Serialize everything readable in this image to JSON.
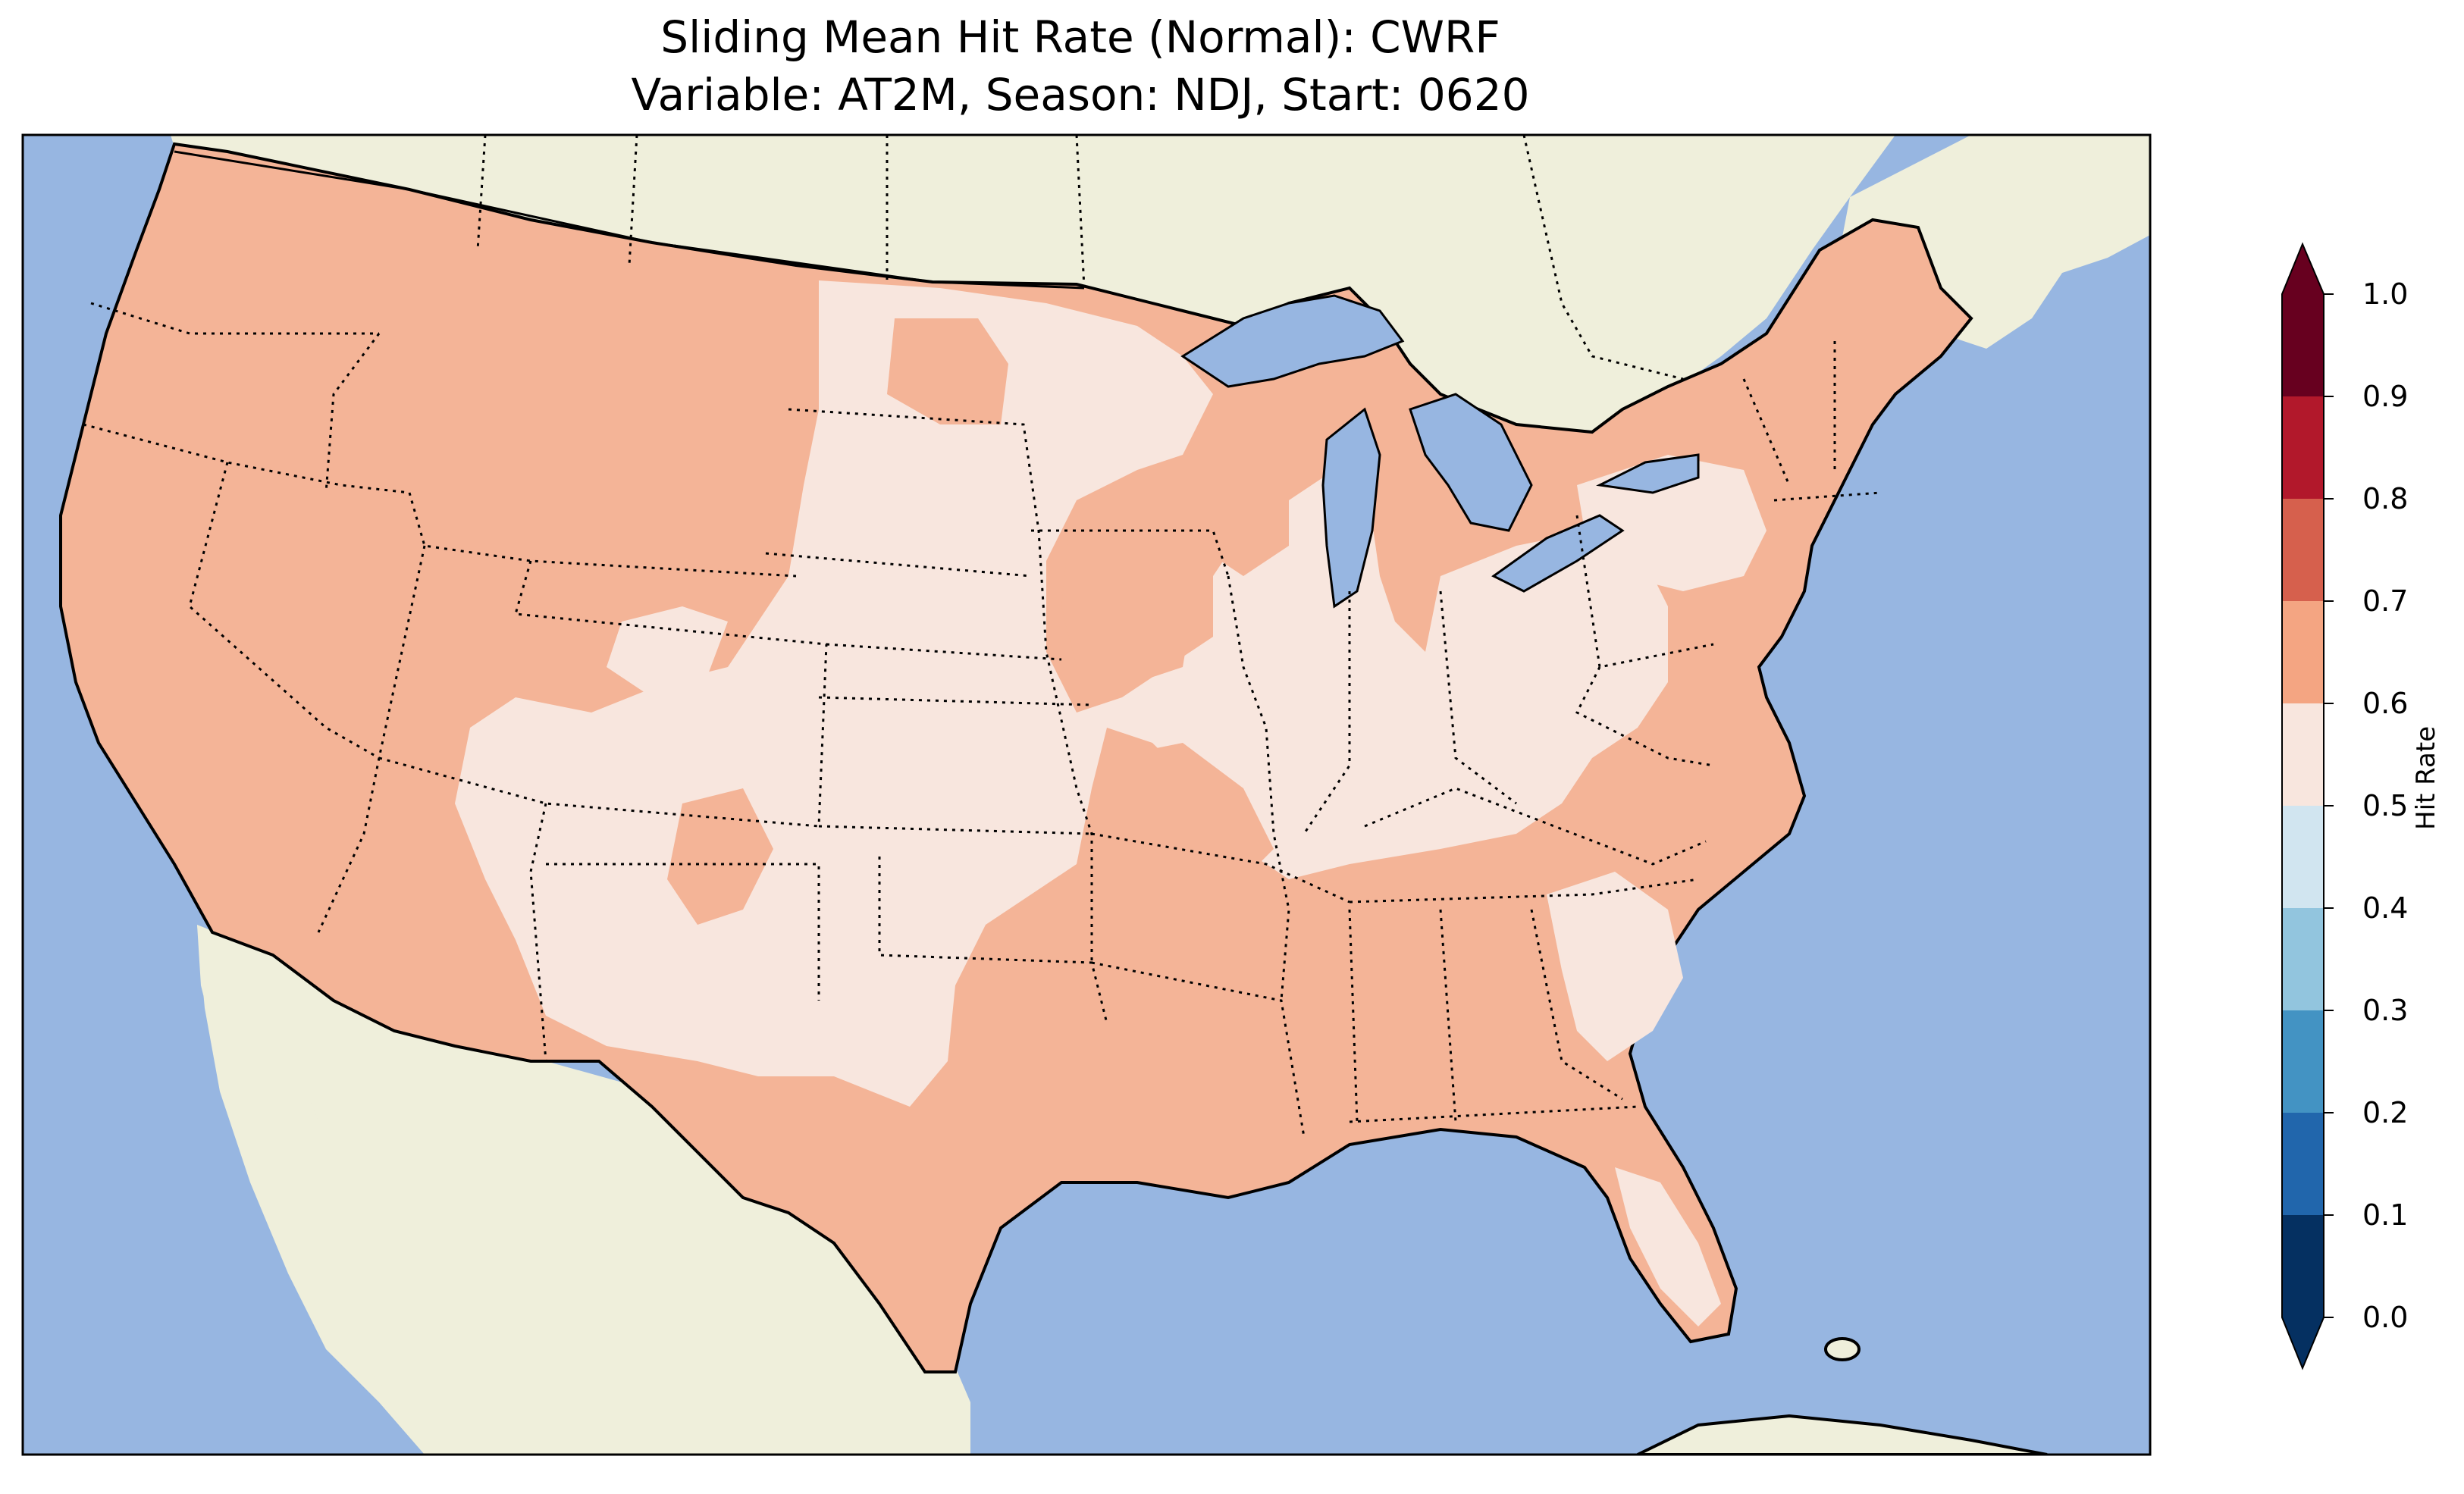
{
  "title": {
    "line1": "Sliding Mean Hit Rate (Normal): CWRF",
    "line2": "Variable: AT2M, Season: NDJ, Start: 0620"
  },
  "map": {
    "region": "Contiguous United States",
    "ocean_color": "#97b6e1",
    "land_color": "#efefdb",
    "coastline_color": "#000000",
    "state_border_style": "dotted"
  },
  "colorbar": {
    "label": "Hit Rate",
    "ticks": [
      "0.0",
      "0.1",
      "0.2",
      "0.3",
      "0.4",
      "0.5",
      "0.6",
      "0.7",
      "0.8",
      "0.9",
      "1.0"
    ],
    "bins": [
      {
        "range": [
          0.0,
          0.1
        ],
        "color": "#053061"
      },
      {
        "range": [
          0.1,
          0.2
        ],
        "color": "#2166ac"
      },
      {
        "range": [
          0.2,
          0.3
        ],
        "color": "#4393c3"
      },
      {
        "range": [
          0.3,
          0.4
        ],
        "color": "#92c5de"
      },
      {
        "range": [
          0.4,
          0.5
        ],
        "color": "#d1e5f0"
      },
      {
        "range": [
          0.5,
          0.6
        ],
        "color": "#f8e6de"
      },
      {
        "range": [
          0.6,
          0.7
        ],
        "color": "#f4b497"
      },
      {
        "range": [
          0.7,
          0.8
        ],
        "color": "#d6604d"
      },
      {
        "range": [
          0.8,
          0.9
        ],
        "color": "#b2182b"
      },
      {
        "range": [
          0.9,
          1.0
        ],
        "color": "#67001f"
      }
    ],
    "extend": "both"
  },
  "field": {
    "dominant_bins": [
      "0.6-0.7",
      "0.5-0.6"
    ]
  }
}
